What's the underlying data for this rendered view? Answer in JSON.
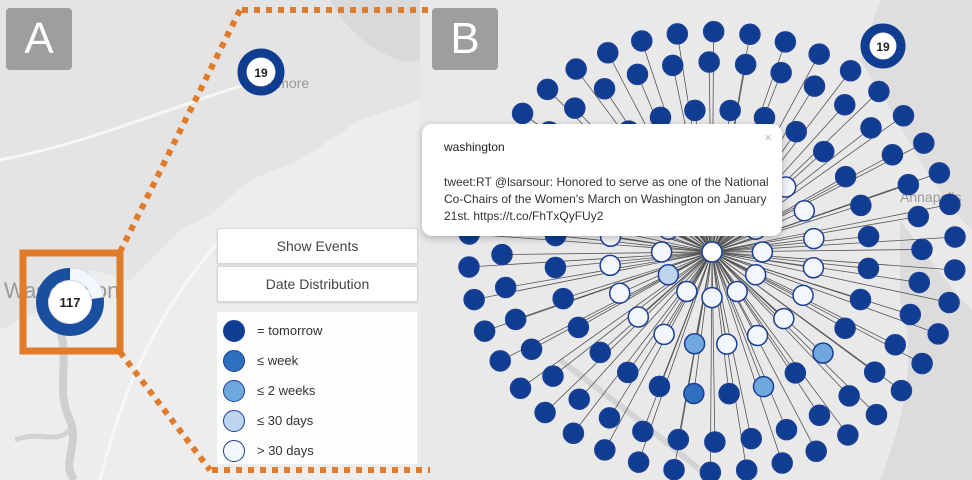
{
  "panels": {
    "a_label": "A",
    "b_label": "B"
  },
  "map": {
    "place_washington": "Washington",
    "place_baltimore": "Baltimore",
    "place_annapolis": "Annapolis"
  },
  "clusters": {
    "washington_count": "117",
    "baltimore_count": "19",
    "baltimore_count_b": "19"
  },
  "buttons": {
    "show_events": "Show Events",
    "date_distribution": "Date Distribution"
  },
  "legend": {
    "items": [
      {
        "label": "= tomorrow",
        "color": "#0f3d91"
      },
      {
        "label": "≤ week",
        "color": "#2e6fc0"
      },
      {
        "label": "≤ 2 weeks",
        "color": "#6fa8dc"
      },
      {
        "label": "≤ 30 days",
        "color": "#bcd4ee"
      },
      {
        "label": "> 30 days",
        "color": "#f3f6fc"
      }
    ]
  },
  "popup": {
    "title": "washington",
    "text": "tweet:RT @lsarsour: Honored to serve as one of the National Co-Chairs of the Women's March on Washington on January 21st. https://t.co/FhTxQyFUy2",
    "close": "×"
  },
  "colors": {
    "highlight_orange": "#e07b2a",
    "node_dark": "#0f3d91",
    "node_outline": "#1a3f96"
  }
}
